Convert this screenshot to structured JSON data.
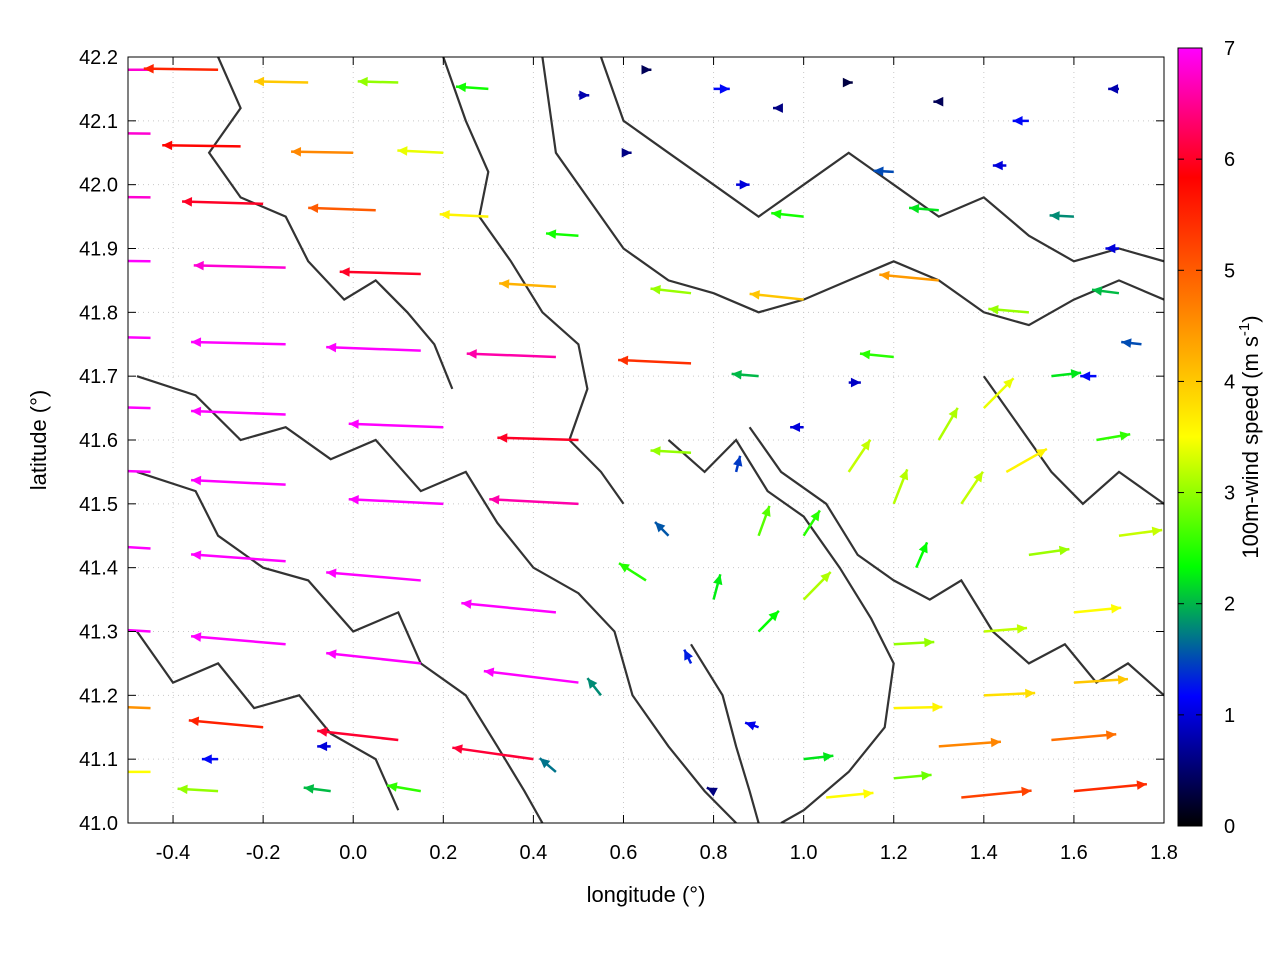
{
  "chart_data": {
    "type": "vector-field",
    "xlabel": "longitude (°)",
    "ylabel": "latitude (°)",
    "xlim": [
      -0.5,
      1.8
    ],
    "ylim": [
      41.0,
      42.2
    ],
    "x_ticks": [
      -0.4,
      -0.2,
      0.0,
      0.2,
      0.4,
      0.6,
      0.8,
      1.0,
      1.2,
      1.4,
      1.6,
      1.8
    ],
    "x_tick_labels": [
      "-0.4",
      "-0.2",
      "0.0",
      "0.2",
      "0.4",
      "0.6",
      "0.8",
      "1.0",
      "1.2",
      "1.4",
      "1.6",
      "1.8"
    ],
    "y_ticks": [
      41.0,
      41.1,
      41.2,
      41.3,
      41.4,
      41.5,
      41.6,
      41.7,
      41.8,
      41.9,
      42.0,
      42.1,
      42.2
    ],
    "y_tick_labels": [
      "41.0",
      "41.1",
      "41.2",
      "41.3",
      "41.4",
      "41.5",
      "41.6",
      "41.7",
      "41.8",
      "41.9",
      "42.0",
      "42.1",
      "42.2"
    ],
    "grid": "dotted",
    "colorbar": {
      "label_main": "100m-wind speed (m s",
      "label_sup": "-1",
      "label_end": ")",
      "range": [
        0,
        7
      ],
      "ticks": [
        0,
        1,
        2,
        3,
        4,
        5,
        6,
        7
      ],
      "tick_labels": [
        "0",
        "1",
        "2",
        "3",
        "4",
        "5",
        "6",
        "7"
      ],
      "colors": [
        "#000000",
        "#0000ff",
        "#00ff00",
        "#ffff00",
        "#ff8000",
        "#ff0000",
        "#ff00ff"
      ]
    },
    "series": [
      {
        "kind": "wind-vectors",
        "fields": [
          "longitude",
          "latitude",
          "u",
          "v"
        ],
        "values": [
          [
            -0.45,
            42.18,
            -6.8,
            0.0
          ],
          [
            -0.3,
            42.18,
            -5.5,
            0.1
          ],
          [
            -0.1,
            42.16,
            -4.0,
            0.1
          ],
          [
            0.1,
            42.16,
            -3.0,
            0.1
          ],
          [
            0.3,
            42.15,
            -2.4,
            0.2
          ],
          [
            -0.45,
            42.08,
            -6.8,
            0.1
          ],
          [
            -0.25,
            42.06,
            -5.8,
            0.1
          ],
          [
            0.0,
            42.05,
            -4.6,
            0.1
          ],
          [
            0.2,
            42.05,
            -3.4,
            0.2
          ],
          [
            -0.45,
            41.98,
            -6.8,
            0.1
          ],
          [
            -0.2,
            41.97,
            -6.0,
            0.2
          ],
          [
            0.05,
            41.96,
            -5.0,
            0.2
          ],
          [
            0.3,
            41.95,
            -3.6,
            0.2
          ],
          [
            0.5,
            41.92,
            -2.4,
            0.2
          ],
          [
            -0.45,
            41.88,
            -7.0,
            0.1
          ],
          [
            -0.15,
            41.87,
            -6.8,
            0.2
          ],
          [
            0.15,
            41.86,
            -6.0,
            0.2
          ],
          [
            0.45,
            41.84,
            -4.2,
            0.3
          ],
          [
            0.75,
            41.83,
            -3.0,
            0.4
          ],
          [
            -0.45,
            41.76,
            -7.0,
            0.2
          ],
          [
            -0.15,
            41.75,
            -7.0,
            0.2
          ],
          [
            0.15,
            41.74,
            -7.0,
            0.3
          ],
          [
            0.45,
            41.73,
            -6.6,
            0.3
          ],
          [
            0.75,
            41.72,
            -5.4,
            0.3
          ],
          [
            -0.45,
            41.65,
            -7.0,
            0.2
          ],
          [
            -0.15,
            41.64,
            -7.0,
            0.3
          ],
          [
            0.2,
            41.62,
            -7.0,
            0.3
          ],
          [
            0.5,
            41.6,
            -6.0,
            0.2
          ],
          [
            0.75,
            41.58,
            -3.0,
            0.2
          ],
          [
            -0.45,
            41.55,
            -7.0,
            0.3
          ],
          [
            -0.15,
            41.53,
            -7.0,
            0.4
          ],
          [
            0.2,
            41.5,
            -7.0,
            0.4
          ],
          [
            0.5,
            41.5,
            -6.6,
            0.4
          ],
          [
            -0.45,
            41.43,
            -7.0,
            0.5
          ],
          [
            -0.15,
            41.41,
            -7.0,
            0.6
          ],
          [
            0.15,
            41.38,
            -7.0,
            0.7
          ],
          [
            0.45,
            41.33,
            -7.0,
            0.8
          ],
          [
            -0.45,
            41.3,
            -7.0,
            0.5
          ],
          [
            -0.15,
            41.28,
            -7.0,
            0.7
          ],
          [
            0.15,
            41.25,
            -7.0,
            0.9
          ],
          [
            0.5,
            41.22,
            -7.0,
            1.0
          ],
          [
            -0.45,
            41.18,
            -4.5,
            0.2
          ],
          [
            -0.2,
            41.15,
            -5.5,
            0.6
          ],
          [
            0.1,
            41.13,
            -6.0,
            0.8
          ],
          [
            0.4,
            41.1,
            -6.0,
            1.0
          ],
          [
            -0.45,
            41.08,
            -3.5,
            0.0
          ],
          [
            -0.3,
            41.05,
            -3.0,
            0.2
          ],
          [
            -0.05,
            41.05,
            -2.0,
            0.3
          ],
          [
            0.15,
            41.05,
            -2.5,
            0.5
          ],
          [
            -0.3,
            41.1,
            -1.2,
            0.0
          ],
          [
            -0.05,
            41.12,
            -1.0,
            0.0
          ],
          [
            0.7,
            41.45,
            -1.0,
            1.2
          ],
          [
            0.65,
            41.38,
            -2.0,
            1.5
          ],
          [
            0.8,
            41.35,
            0.5,
            2.2
          ],
          [
            0.9,
            41.45,
            0.8,
            2.6
          ],
          [
            0.75,
            41.25,
            -0.5,
            1.2
          ],
          [
            0.85,
            41.55,
            0.3,
            1.4
          ],
          [
            1.0,
            41.45,
            1.2,
            2.2
          ],
          [
            1.1,
            41.55,
            1.6,
            2.8
          ],
          [
            1.2,
            41.5,
            1.0,
            3.0
          ],
          [
            1.3,
            41.6,
            1.4,
            2.8
          ],
          [
            1.35,
            41.5,
            1.6,
            2.8
          ],
          [
            1.25,
            41.4,
            0.8,
            2.2
          ],
          [
            0.9,
            41.3,
            1.5,
            1.8
          ],
          [
            1.0,
            41.35,
            2.0,
            2.4
          ],
          [
            1.4,
            41.65,
            2.2,
            2.6
          ],
          [
            1.45,
            41.55,
            3.0,
            2.0
          ],
          [
            0.55,
            41.2,
            -1.0,
            1.5
          ],
          [
            0.45,
            41.08,
            -1.2,
            1.2
          ],
          [
            0.9,
            41.7,
            -2.0,
            0.2
          ],
          [
            1.0,
            41.82,
            -4.0,
            0.5
          ],
          [
            1.3,
            41.85,
            -4.4,
            0.5
          ],
          [
            1.2,
            41.73,
            -2.5,
            0.3
          ],
          [
            1.5,
            41.8,
            -3.0,
            0.3
          ],
          [
            1.7,
            41.83,
            -2.0,
            0.3
          ],
          [
            1.0,
            41.95,
            -2.4,
            0.3
          ],
          [
            1.3,
            41.96,
            -2.2,
            0.2
          ],
          [
            1.6,
            41.95,
            -1.8,
            0.1
          ],
          [
            1.7,
            41.9,
            -1.0,
            0.0
          ],
          [
            1.75,
            41.75,
            -1.5,
            0.2
          ],
          [
            0.5,
            42.14,
            0.8,
            0.0
          ],
          [
            0.65,
            42.18,
            0.4,
            0.0
          ],
          [
            0.8,
            42.15,
            1.2,
            0.0
          ],
          [
            0.95,
            42.12,
            -0.6,
            0.0
          ],
          [
            1.1,
            42.16,
            0.3,
            0.0
          ],
          [
            1.3,
            42.13,
            -0.4,
            0.0
          ],
          [
            1.5,
            42.1,
            -1.2,
            0.0
          ],
          [
            1.7,
            42.15,
            -0.8,
            0.0
          ],
          [
            0.6,
            42.05,
            0.6,
            0.0
          ],
          [
            0.85,
            42.0,
            1.0,
            0.0
          ],
          [
            1.2,
            42.02,
            -1.5,
            0.1
          ],
          [
            1.45,
            42.03,
            -1.0,
            0.0
          ],
          [
            1.0,
            41.62,
            -1.0,
            0.0
          ],
          [
            1.1,
            41.69,
            0.9,
            0.0
          ],
          [
            1.65,
            41.7,
            -1.2,
            0.0
          ],
          [
            1.2,
            41.28,
            3.0,
            0.2
          ],
          [
            1.4,
            41.3,
            3.2,
            0.3
          ],
          [
            1.6,
            41.33,
            3.5,
            0.4
          ],
          [
            1.2,
            41.18,
            3.6,
            0.1
          ],
          [
            1.4,
            41.2,
            3.8,
            0.2
          ],
          [
            1.6,
            41.22,
            4.0,
            0.3
          ],
          [
            1.3,
            41.12,
            4.6,
            0.4
          ],
          [
            1.55,
            41.13,
            4.8,
            0.5
          ],
          [
            1.35,
            41.04,
            5.2,
            0.6
          ],
          [
            1.6,
            41.05,
            5.4,
            0.6
          ],
          [
            1.2,
            41.07,
            2.8,
            0.3
          ],
          [
            1.0,
            41.1,
            2.2,
            0.3
          ],
          [
            1.05,
            41.04,
            3.5,
            0.4
          ],
          [
            1.5,
            41.42,
            3.0,
            0.5
          ],
          [
            1.7,
            41.45,
            3.2,
            0.5
          ],
          [
            1.65,
            41.6,
            2.5,
            0.5
          ],
          [
            1.55,
            41.7,
            2.2,
            0.3
          ],
          [
            0.9,
            41.15,
            -1.0,
            0.4
          ],
          [
            0.8,
            41.05,
            -0.5,
            0.3
          ]
        ]
      }
    ],
    "contours": [
      [
        [
          -0.48,
          41.7
        ],
        [
          -0.35,
          41.67
        ],
        [
          -0.25,
          41.6
        ],
        [
          -0.15,
          41.62
        ],
        [
          -0.05,
          41.57
        ],
        [
          0.05,
          41.6
        ],
        [
          0.15,
          41.52
        ],
        [
          0.25,
          41.55
        ],
        [
          0.32,
          41.47
        ],
        [
          0.4,
          41.4
        ],
        [
          0.5,
          41.36
        ],
        [
          0.58,
          41.3
        ],
        [
          0.62,
          41.2
        ],
        [
          0.7,
          41.12
        ],
        [
          0.78,
          41.05
        ],
        [
          0.85,
          41.0
        ]
      ],
      [
        [
          -0.48,
          41.55
        ],
        [
          -0.35,
          41.52
        ],
        [
          -0.3,
          41.45
        ],
        [
          -0.2,
          41.4
        ],
        [
          -0.1,
          41.38
        ],
        [
          0.0,
          41.3
        ],
        [
          0.1,
          41.33
        ],
        [
          0.15,
          41.25
        ],
        [
          0.25,
          41.2
        ],
        [
          0.32,
          41.12
        ],
        [
          0.38,
          41.05
        ],
        [
          0.42,
          41.0
        ]
      ],
      [
        [
          -0.48,
          41.3
        ],
        [
          -0.4,
          41.22
        ],
        [
          -0.3,
          41.25
        ],
        [
          -0.22,
          41.18
        ],
        [
          -0.12,
          41.2
        ],
        [
          -0.05,
          41.14
        ],
        [
          0.05,
          41.1
        ],
        [
          0.1,
          41.02
        ]
      ],
      [
        [
          0.42,
          42.2
        ],
        [
          0.45,
          42.05
        ],
        [
          0.52,
          41.98
        ],
        [
          0.6,
          41.9
        ],
        [
          0.7,
          41.85
        ],
        [
          0.8,
          41.83
        ],
        [
          0.9,
          41.8
        ],
        [
          1.0,
          41.82
        ],
        [
          1.1,
          41.85
        ],
        [
          1.2,
          41.88
        ],
        [
          1.3,
          41.85
        ],
        [
          1.4,
          41.8
        ],
        [
          1.5,
          41.78
        ],
        [
          1.6,
          41.82
        ],
        [
          1.7,
          41.85
        ],
        [
          1.8,
          41.82
        ]
      ],
      [
        [
          0.55,
          42.2
        ],
        [
          0.6,
          42.1
        ],
        [
          0.7,
          42.05
        ],
        [
          0.8,
          42.0
        ],
        [
          0.9,
          41.95
        ],
        [
          1.0,
          42.0
        ],
        [
          1.1,
          42.05
        ],
        [
          1.2,
          42.0
        ],
        [
          1.3,
          41.95
        ],
        [
          1.4,
          41.98
        ],
        [
          1.5,
          41.92
        ],
        [
          1.6,
          41.88
        ],
        [
          1.7,
          41.9
        ],
        [
          1.8,
          41.88
        ]
      ],
      [
        [
          0.7,
          41.6
        ],
        [
          0.78,
          41.55
        ],
        [
          0.85,
          41.6
        ],
        [
          0.92,
          41.52
        ],
        [
          1.0,
          41.48
        ],
        [
          1.08,
          41.4
        ],
        [
          1.15,
          41.32
        ],
        [
          1.2,
          41.25
        ],
        [
          1.18,
          41.15
        ],
        [
          1.1,
          41.08
        ],
        [
          1.0,
          41.02
        ],
        [
          0.95,
          41.0
        ]
      ],
      [
        [
          0.88,
          41.62
        ],
        [
          0.95,
          41.55
        ],
        [
          1.05,
          41.5
        ],
        [
          1.12,
          41.42
        ],
        [
          1.2,
          41.38
        ],
        [
          1.28,
          41.35
        ],
        [
          1.35,
          41.38
        ],
        [
          1.42,
          41.3
        ],
        [
          1.5,
          41.25
        ],
        [
          1.58,
          41.28
        ],
        [
          1.65,
          41.22
        ],
        [
          1.72,
          41.25
        ],
        [
          1.8,
          41.2
        ]
      ],
      [
        [
          0.2,
          42.2
        ],
        [
          0.25,
          42.1
        ],
        [
          0.3,
          42.02
        ],
        [
          0.28,
          41.95
        ],
        [
          0.35,
          41.88
        ],
        [
          0.42,
          41.8
        ],
        [
          0.5,
          41.75
        ],
        [
          0.52,
          41.68
        ],
        [
          0.48,
          41.6
        ],
        [
          0.55,
          41.55
        ],
        [
          0.6,
          41.5
        ]
      ],
      [
        [
          -0.3,
          42.2
        ],
        [
          -0.25,
          42.12
        ],
        [
          -0.32,
          42.05
        ],
        [
          -0.25,
          41.98
        ],
        [
          -0.15,
          41.95
        ],
        [
          -0.1,
          41.88
        ],
        [
          -0.02,
          41.82
        ],
        [
          0.05,
          41.85
        ],
        [
          0.12,
          41.8
        ],
        [
          0.18,
          41.75
        ],
        [
          0.22,
          41.68
        ]
      ],
      [
        [
          0.75,
          41.28
        ],
        [
          0.82,
          41.2
        ],
        [
          0.85,
          41.12
        ],
        [
          0.88,
          41.05
        ],
        [
          0.9,
          41.0
        ]
      ],
      [
        [
          1.4,
          41.7
        ],
        [
          1.48,
          41.62
        ],
        [
          1.55,
          41.55
        ],
        [
          1.62,
          41.5
        ],
        [
          1.7,
          41.55
        ],
        [
          1.8,
          41.5
        ]
      ]
    ]
  }
}
